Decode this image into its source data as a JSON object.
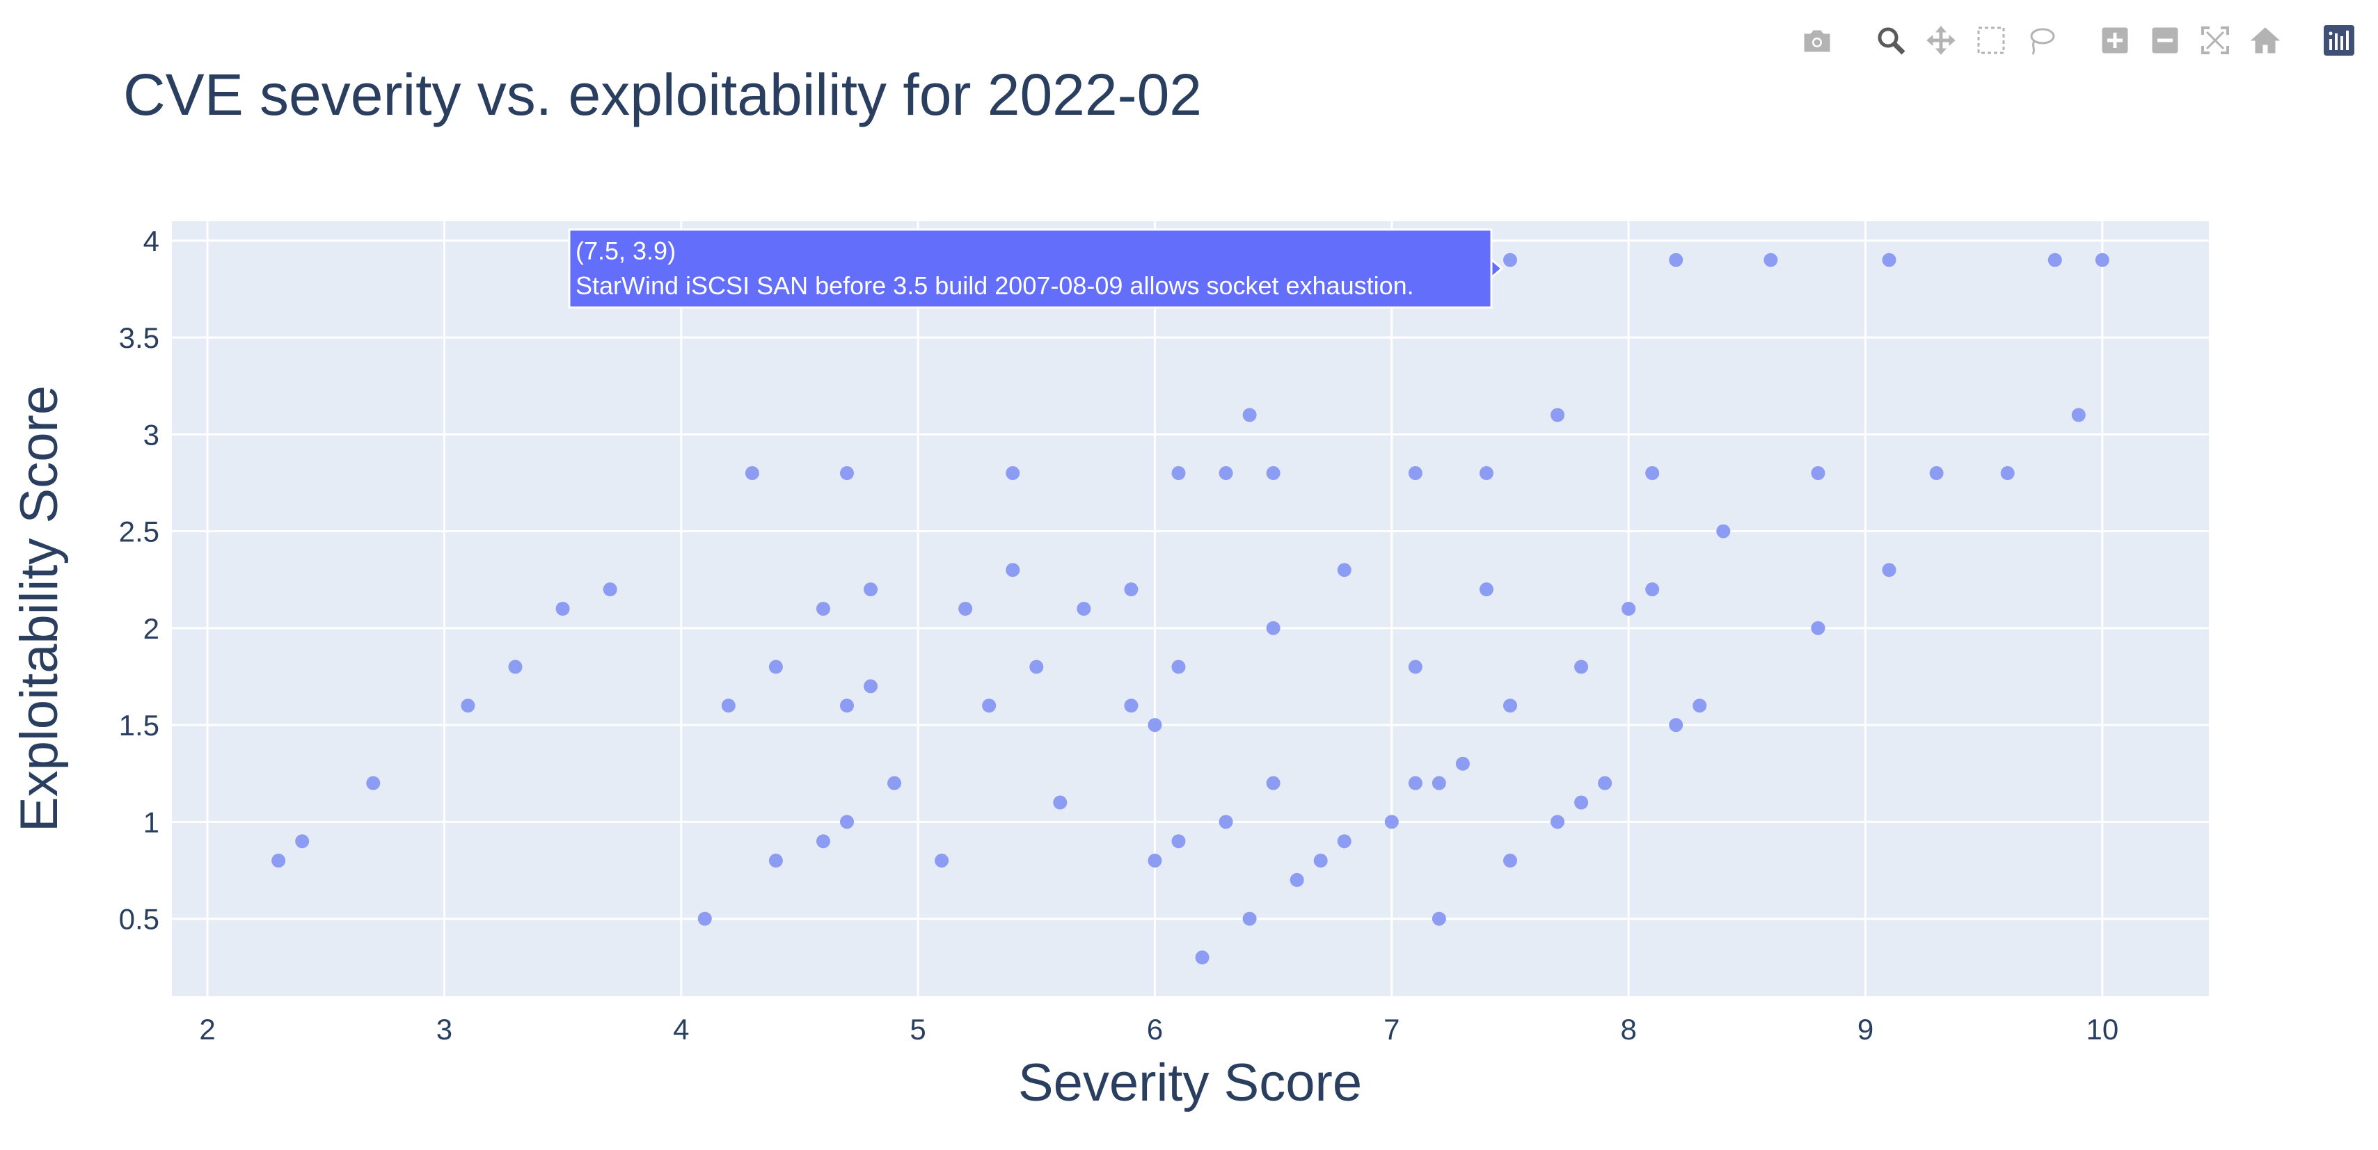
{
  "chart_data": {
    "type": "scatter",
    "title": "CVE severity vs. exploitability for 2022-02",
    "xlabel": "Severity Score",
    "ylabel": "Exploitability Score",
    "xlim": [
      1.85,
      10.45
    ],
    "ylim": [
      0.1,
      4.1
    ],
    "xticks": [
      2,
      3,
      4,
      5,
      6,
      7,
      8,
      9,
      10
    ],
    "yticks": [
      0.5,
      1,
      1.5,
      2,
      2.5,
      3,
      3.5,
      4
    ],
    "xtick_labels": [
      "2",
      "3",
      "4",
      "5",
      "6",
      "7",
      "8",
      "9",
      "10"
    ],
    "ytick_labels": [
      "0.5",
      "1",
      "1.5",
      "2",
      "2.5",
      "3",
      "3.5",
      "4"
    ],
    "grid": true,
    "colors": {
      "plot_bg": "#e5ecf6",
      "grid": "#ffffff",
      "marker": "#8c9cf2",
      "text": "#2a3f5f",
      "hover_bg": "#636efa",
      "hover_text": "#ffffff"
    },
    "series": [
      {
        "points": [
          [
            2.3,
            0.8
          ],
          [
            2.4,
            0.9
          ],
          [
            2.7,
            1.2
          ],
          [
            3.1,
            1.6
          ],
          [
            3.3,
            1.8
          ],
          [
            3.5,
            2.1
          ],
          [
            3.7,
            2.2
          ],
          [
            4.1,
            0.5
          ],
          [
            4.2,
            1.6
          ],
          [
            4.3,
            2.8
          ],
          [
            4.4,
            0.8
          ],
          [
            4.4,
            1.8
          ],
          [
            4.6,
            0.9
          ],
          [
            4.6,
            2.1
          ],
          [
            4.7,
            1.0
          ],
          [
            4.7,
            1.6
          ],
          [
            4.7,
            2.8
          ],
          [
            4.8,
            1.7
          ],
          [
            4.8,
            2.2
          ],
          [
            4.9,
            1.2
          ],
          [
            5.1,
            0.8
          ],
          [
            5.2,
            2.1
          ],
          [
            5.3,
            1.6
          ],
          [
            5.4,
            2.3
          ],
          [
            5.4,
            2.8
          ],
          [
            5.5,
            1.8
          ],
          [
            5.6,
            1.1
          ],
          [
            5.7,
            2.1
          ],
          [
            5.9,
            1.6
          ],
          [
            5.9,
            2.2
          ],
          [
            6.0,
            0.8
          ],
          [
            6.0,
            1.5
          ],
          [
            6.1,
            0.9
          ],
          [
            6.1,
            1.8
          ],
          [
            6.1,
            2.8
          ],
          [
            6.2,
            0.3
          ],
          [
            6.3,
            1.0
          ],
          [
            6.3,
            2.8
          ],
          [
            6.4,
            0.5
          ],
          [
            6.4,
            3.1
          ],
          [
            6.5,
            1.2
          ],
          [
            6.5,
            2.0
          ],
          [
            6.5,
            2.8
          ],
          [
            6.6,
            0.7
          ],
          [
            6.7,
            0.8
          ],
          [
            6.8,
            0.9
          ],
          [
            6.8,
            2.3
          ],
          [
            7.0,
            1.0
          ],
          [
            7.1,
            1.2
          ],
          [
            7.1,
            1.8
          ],
          [
            7.1,
            2.8
          ],
          [
            7.2,
            0.5
          ],
          [
            7.2,
            1.2
          ],
          [
            7.3,
            1.3
          ],
          [
            7.4,
            2.2
          ],
          [
            7.4,
            2.8
          ],
          [
            7.5,
            0.8
          ],
          [
            7.5,
            1.6
          ],
          [
            7.5,
            3.9
          ],
          [
            7.7,
            1.0
          ],
          [
            7.7,
            3.1
          ],
          [
            7.8,
            1.1
          ],
          [
            7.8,
            1.8
          ],
          [
            7.9,
            1.2
          ],
          [
            8.0,
            2.1
          ],
          [
            8.1,
            2.2
          ],
          [
            8.1,
            2.8
          ],
          [
            8.2,
            1.5
          ],
          [
            8.2,
            3.9
          ],
          [
            8.3,
            1.6
          ],
          [
            8.4,
            2.5
          ],
          [
            8.6,
            3.9
          ],
          [
            8.8,
            2.0
          ],
          [
            8.8,
            2.8
          ],
          [
            9.1,
            2.3
          ],
          [
            9.1,
            3.9
          ],
          [
            9.3,
            2.8
          ],
          [
            9.6,
            2.8
          ],
          [
            9.8,
            3.9
          ],
          [
            9.9,
            3.1
          ],
          [
            10.0,
            3.9
          ]
        ]
      }
    ],
    "hover": {
      "point": [
        7.5,
        3.9
      ],
      "coords_label": "(7.5, 3.9)",
      "text": "StarWind iSCSI SAN before 3.5 build 2007-08-09 allows socket exhaustion."
    }
  },
  "modebar": {
    "buttons": [
      {
        "icon": "camera-icon",
        "active": false
      },
      {
        "icon": "zoom-icon",
        "active": true
      },
      {
        "icon": "pan-icon",
        "active": false
      },
      {
        "icon": "box-select-icon",
        "active": false
      },
      {
        "icon": "lasso-select-icon",
        "active": false
      },
      {
        "icon": "zoom-in-icon",
        "active": false
      },
      {
        "icon": "zoom-out-icon",
        "active": false
      },
      {
        "icon": "autoscale-icon",
        "active": false
      },
      {
        "icon": "reset-axes-icon",
        "active": false
      },
      {
        "icon": "plotly-logo-icon",
        "active": false
      }
    ]
  }
}
